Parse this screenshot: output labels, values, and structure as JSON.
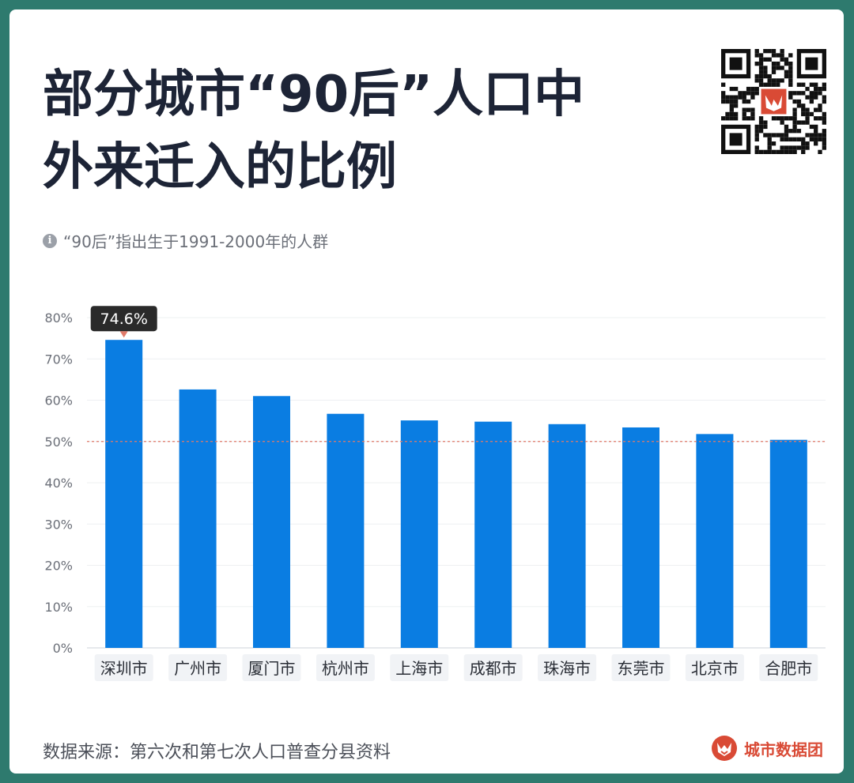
{
  "title_lines": [
    "部分城市“90后”人口中",
    "外来迁入的比例"
  ],
  "note": "“90后”指出生于1991-2000年的人群",
  "source": "数据来源：第六次和第七次人口普查分县资料",
  "brand": "城市数据团",
  "icons": {
    "info": "info-icon",
    "qr": "qr-code-icon",
    "logo": "fox-logo-icon"
  },
  "colors": {
    "bar": "#0a7de2",
    "reference": "#e07a6a",
    "tooltip_bg": "#2a2a2a",
    "title": "#1d2436",
    "brand": "#d94a35"
  },
  "chart_data": {
    "type": "bar",
    "categories": [
      "深圳市",
      "广州市",
      "厦门市",
      "杭州市",
      "上海市",
      "成都市",
      "珠海市",
      "东莞市",
      "北京市",
      "合肥市"
    ],
    "values": [
      74.6,
      62.6,
      61.0,
      56.7,
      55.1,
      54.8,
      54.2,
      53.4,
      51.8,
      50.4
    ],
    "ylim": [
      0,
      80
    ],
    "yticks": [
      "0%",
      "10%",
      "20%",
      "30%",
      "40%",
      "50%",
      "60%",
      "70%",
      "80%"
    ],
    "reference_line": 50,
    "highlight": {
      "index": 0,
      "label": "74.6%"
    },
    "grid": true
  }
}
